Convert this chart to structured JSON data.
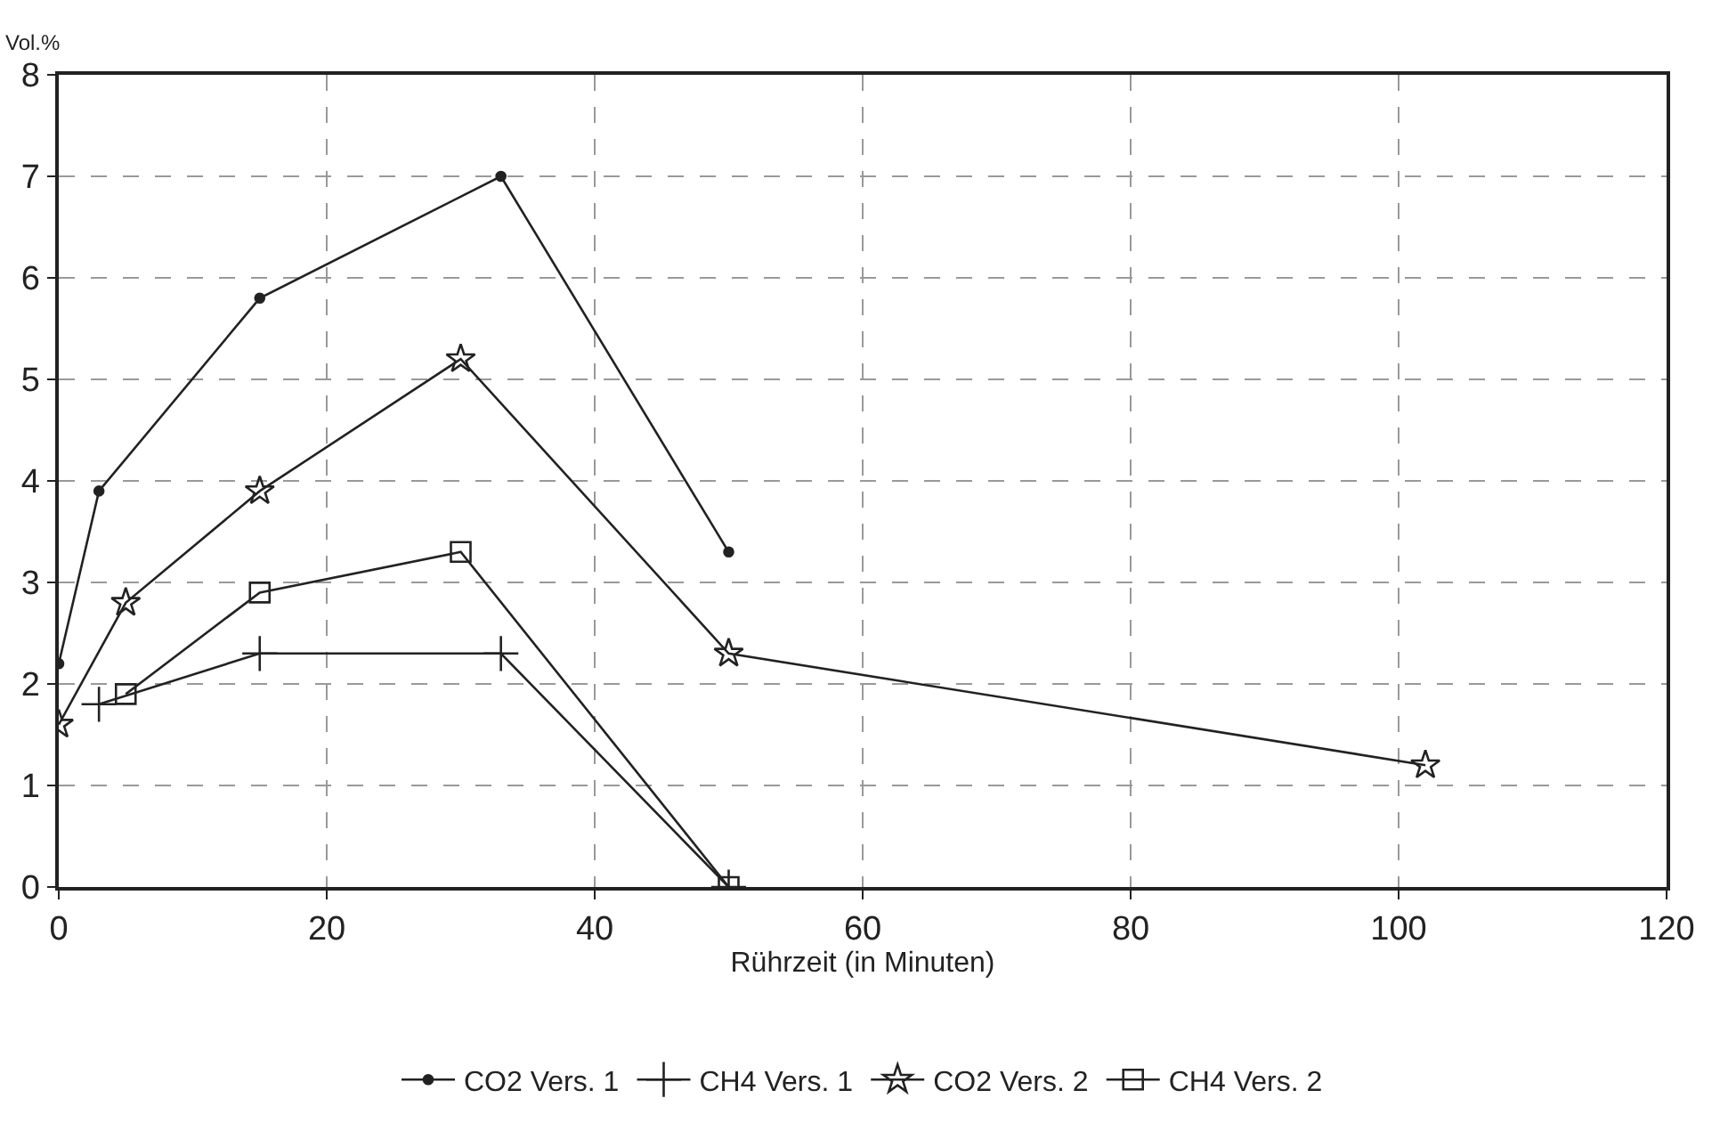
{
  "chart_data": {
    "type": "line",
    "ylabel": "Vol.%",
    "xlabel": "Rührzeit (in Minuten)",
    "xlim": [
      0,
      120
    ],
    "xticks": [
      0,
      20,
      40,
      60,
      80,
      100,
      120
    ],
    "ylim": [
      0,
      8
    ],
    "yticks": [
      0,
      1,
      2,
      3,
      4,
      5,
      6,
      7,
      8
    ],
    "grid": true,
    "legend": "bottom",
    "line_style": "solid",
    "series": [
      {
        "name": "CO2 Vers. 1",
        "color": "#222222",
        "marker": "circle",
        "x": [
          0,
          3,
          15,
          33,
          50
        ],
        "values": [
          2.2,
          3.9,
          5.8,
          7.0,
          3.3
        ]
      },
      {
        "name": "CH4 Vers. 1",
        "color": "#222222",
        "marker": "cross",
        "x": [
          3,
          15,
          33,
          50
        ],
        "values": [
          1.8,
          2.3,
          2.3,
          0
        ]
      },
      {
        "name": "CO2 Vers. 2",
        "color": "#222222",
        "marker": "star",
        "x": [
          0,
          5,
          15,
          30,
          50,
          102
        ],
        "values": [
          1.6,
          2.8,
          3.9,
          5.2,
          2.3,
          1.2
        ]
      },
      {
        "name": "CH4 Vers. 2",
        "color": "#222222",
        "marker": "square",
        "x": [
          5,
          15,
          30,
          50
        ],
        "values": [
          1.9,
          2.9,
          3.3,
          0
        ]
      }
    ]
  }
}
